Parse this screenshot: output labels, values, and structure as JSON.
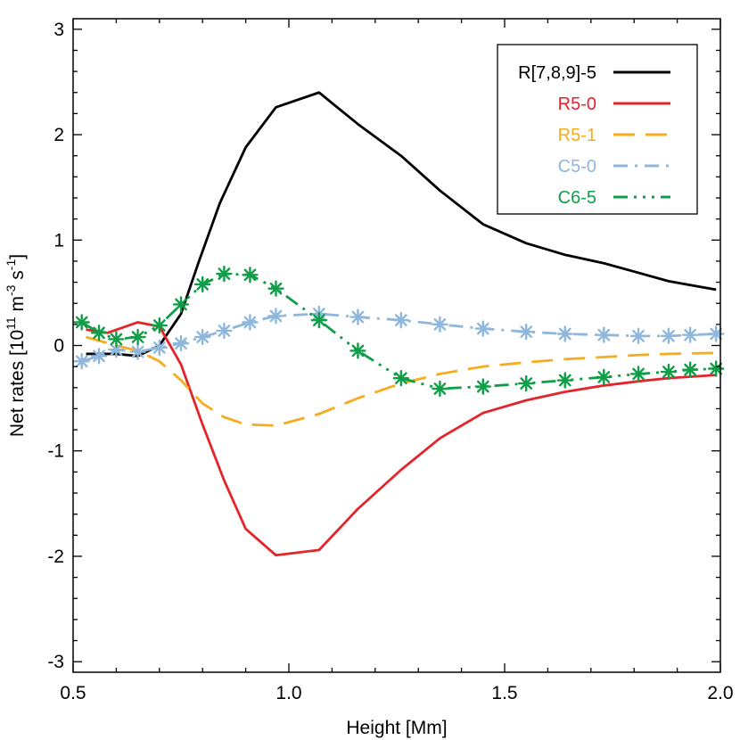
{
  "chart_data": {
    "type": "line",
    "xlabel": "Height [Mm]",
    "ylabel_parts": [
      "Net rates [10",
      "11",
      " m",
      "-3",
      " s",
      "-1",
      "]"
    ],
    "xlim": [
      0.5,
      2.0
    ],
    "ylim": [
      -3.1,
      3.1
    ],
    "x_ticks": [
      0.5,
      1.0,
      1.5,
      2.0
    ],
    "x_tick_labels": [
      "0.5",
      "1.0",
      "1.5",
      "2.0"
    ],
    "y_ticks": [
      -3,
      -2,
      -1,
      0,
      1,
      2,
      3
    ],
    "y_tick_labels": [
      "-3",
      "-2",
      "-1",
      "0",
      "1",
      "2",
      "3"
    ],
    "grid": false,
    "legend_position": "top-right",
    "series": [
      {
        "name": "R[7,8,9]-5",
        "color": "#000000",
        "style": "solid",
        "markers": false,
        "x": [
          0.53,
          0.6,
          0.65,
          0.7,
          0.75,
          0.79,
          0.84,
          0.9,
          0.97,
          1.07,
          1.16,
          1.26,
          1.35,
          1.45,
          1.55,
          1.64,
          1.73,
          1.81,
          1.88,
          1.99
        ],
        "y": [
          -0.08,
          -0.08,
          -0.1,
          0.0,
          0.3,
          0.78,
          1.35,
          1.88,
          2.26,
          2.4,
          2.1,
          1.8,
          1.47,
          1.15,
          0.97,
          0.86,
          0.78,
          0.69,
          0.61,
          0.53
        ]
      },
      {
        "name": "R5-0",
        "color": "#e3242b",
        "style": "solid",
        "markers": false,
        "x": [
          0.53,
          0.58,
          0.65,
          0.7,
          0.75,
          0.8,
          0.85,
          0.9,
          0.97,
          1.07,
          1.16,
          1.26,
          1.35,
          1.45,
          1.55,
          1.64,
          1.73,
          1.81,
          1.88,
          1.99
        ],
        "y": [
          0.15,
          0.12,
          0.22,
          0.18,
          -0.18,
          -0.75,
          -1.28,
          -1.74,
          -1.99,
          -1.94,
          -1.55,
          -1.18,
          -0.88,
          -0.64,
          -0.52,
          -0.44,
          -0.38,
          -0.34,
          -0.31,
          -0.28
        ]
      },
      {
        "name": "R5-1",
        "color": "#f5ac1d",
        "style": "longdash",
        "markers": false,
        "x": [
          0.53,
          0.6,
          0.65,
          0.7,
          0.75,
          0.8,
          0.85,
          0.9,
          0.97,
          1.07,
          1.16,
          1.26,
          1.35,
          1.45,
          1.55,
          1.64,
          1.73,
          1.81,
          1.88,
          1.99
        ],
        "y": [
          0.08,
          0.0,
          -0.05,
          -0.15,
          -0.33,
          -0.55,
          -0.68,
          -0.75,
          -0.76,
          -0.65,
          -0.5,
          -0.36,
          -0.27,
          -0.2,
          -0.16,
          -0.13,
          -0.11,
          -0.09,
          -0.08,
          -0.07
        ]
      },
      {
        "name": "C5-0",
        "color": "#8fb7dc",
        "style": "dashdot",
        "markers": true,
        "x": [
          0.52,
          0.56,
          0.6,
          0.65,
          0.7,
          0.75,
          0.8,
          0.85,
          0.91,
          0.97,
          1.07,
          1.16,
          1.26,
          1.35,
          1.45,
          1.55,
          1.64,
          1.73,
          1.81,
          1.88,
          1.93,
          1.99
        ],
        "y": [
          -0.15,
          -0.1,
          -0.04,
          -0.06,
          -0.02,
          0.02,
          0.08,
          0.14,
          0.22,
          0.28,
          0.3,
          0.27,
          0.24,
          0.2,
          0.16,
          0.13,
          0.11,
          0.1,
          0.09,
          0.09,
          0.1,
          0.11
        ]
      },
      {
        "name": "C6-5",
        "color": "#0f9e48",
        "style": "dashdotdotdot",
        "markers": true,
        "x": [
          0.52,
          0.56,
          0.6,
          0.65,
          0.7,
          0.75,
          0.8,
          0.85,
          0.91,
          0.97,
          1.07,
          1.16,
          1.26,
          1.35,
          1.45,
          1.55,
          1.64,
          1.73,
          1.81,
          1.88,
          1.93,
          1.99
        ],
        "y": [
          0.22,
          0.12,
          0.06,
          0.08,
          0.19,
          0.39,
          0.58,
          0.68,
          0.67,
          0.54,
          0.24,
          -0.05,
          -0.31,
          -0.41,
          -0.39,
          -0.36,
          -0.33,
          -0.3,
          -0.27,
          -0.25,
          -0.23,
          -0.22
        ]
      }
    ]
  }
}
